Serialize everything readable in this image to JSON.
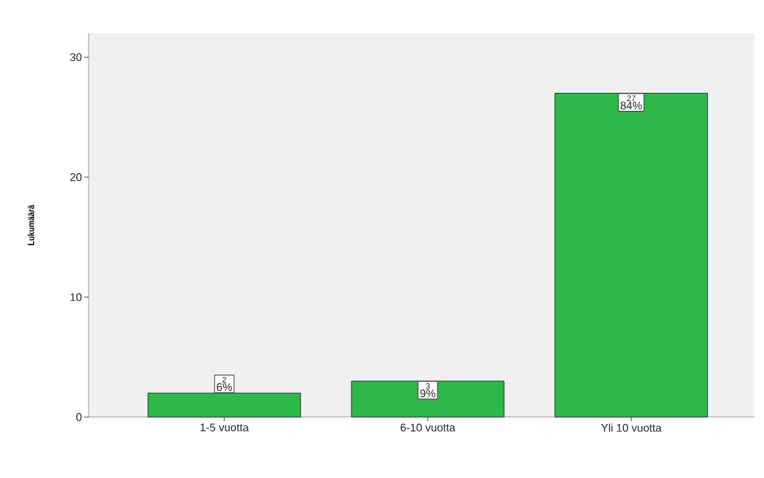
{
  "chart_data": {
    "type": "bar",
    "ylabel": "Lukumäärä",
    "categories": [
      "1-5 vuotta",
      "6-10 vuotta",
      "Yli 10 vuotta"
    ],
    "values": [
      2,
      3,
      27
    ],
    "color": "#2db84a",
    "ylim": [
      0,
      32
    ],
    "yticks": [
      0,
      10,
      20,
      30
    ],
    "data_labels": true,
    "annotations": [
      "6%",
      "9%",
      "84%"
    ]
  }
}
